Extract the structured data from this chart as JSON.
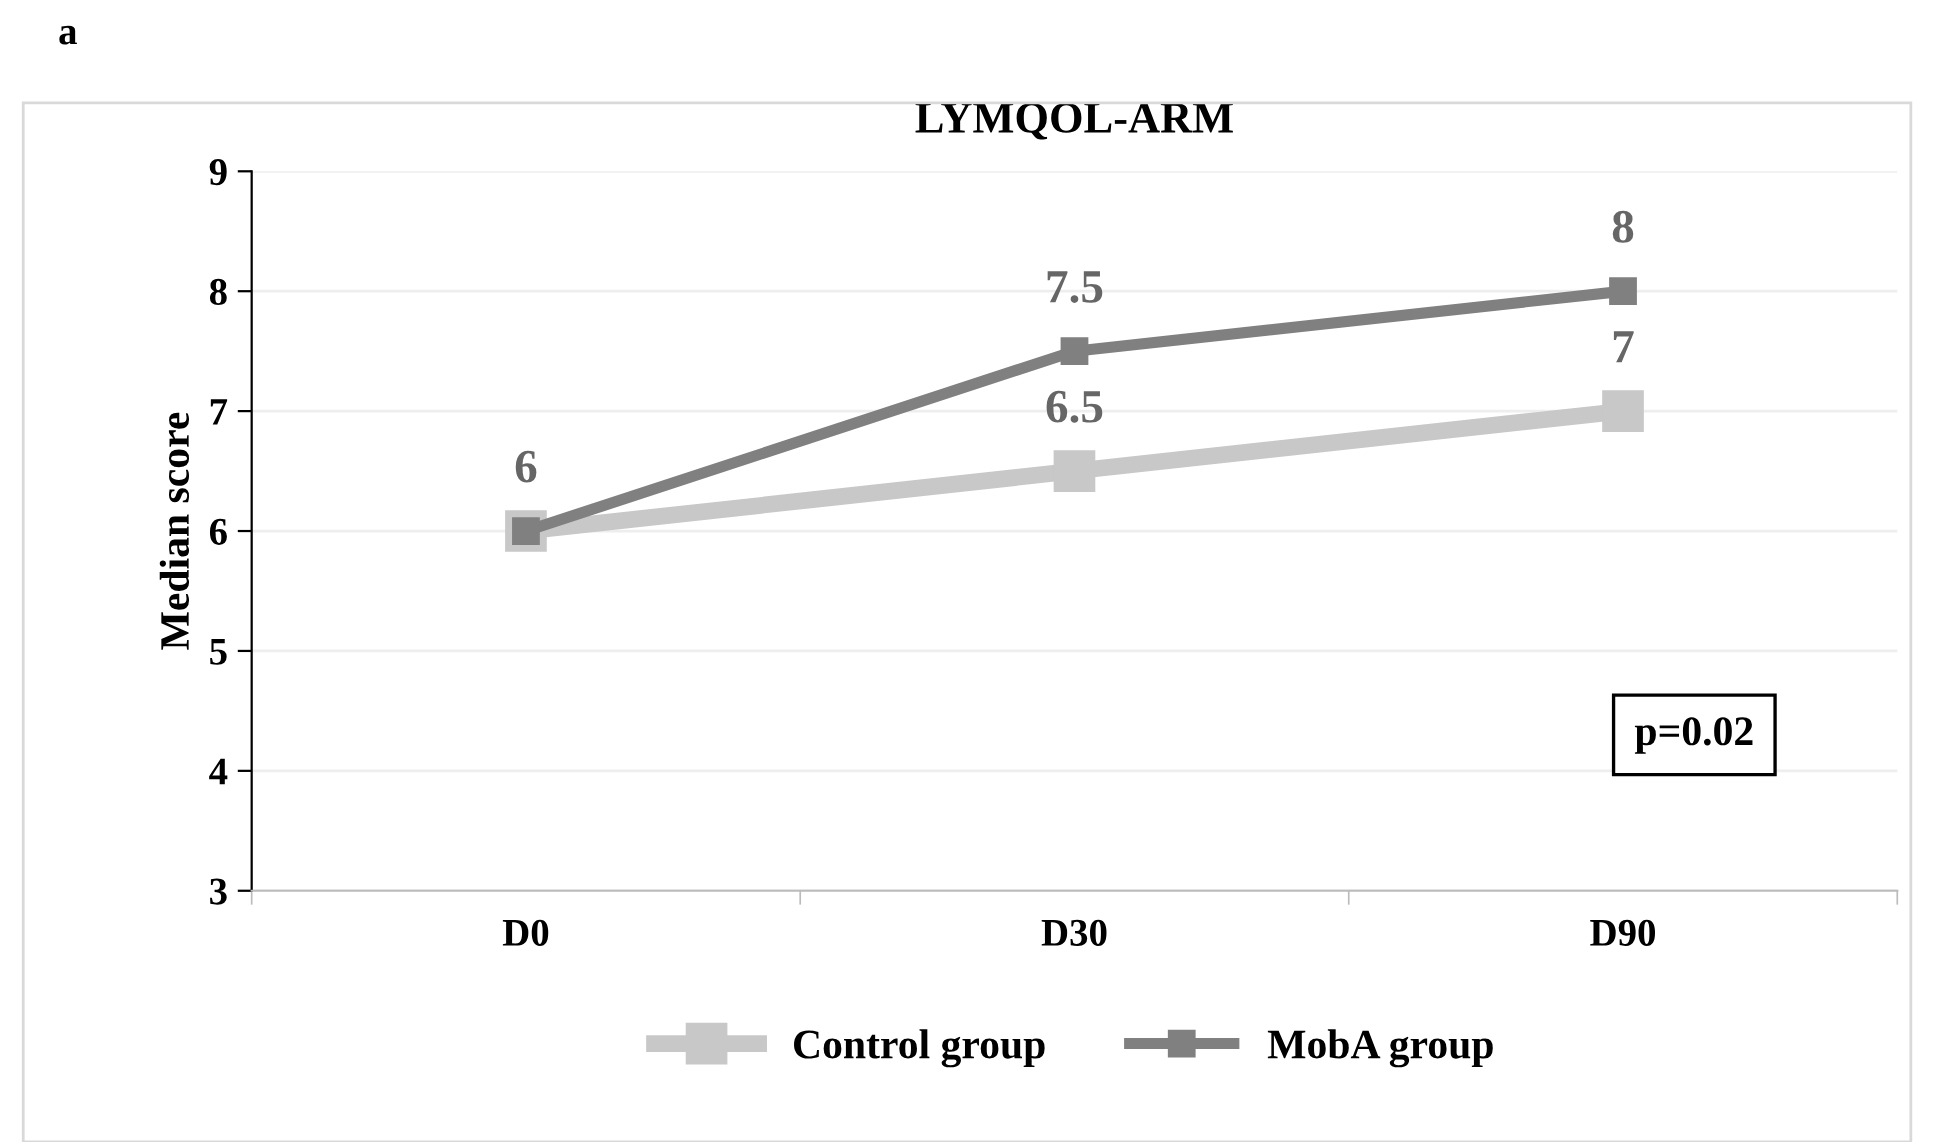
{
  "chart_data": {
    "type": "line",
    "title": "LYMQOL-ARM",
    "ylabel": "Median score",
    "categories": [
      "D0",
      "D30",
      "D90"
    ],
    "series": [
      {
        "name": "Control group",
        "color": "#c8c8c8",
        "values": [
          6,
          6.5,
          7
        ],
        "value_labels": [
          null,
          "6.5",
          "7"
        ]
      },
      {
        "name": "MobA group",
        "color": "#808080",
        "values": [
          6,
          7.5,
          8
        ],
        "value_labels": [
          "6",
          "7.5",
          "8"
        ]
      }
    ],
    "ylim": [
      3,
      9
    ],
    "yticks": [
      3,
      4,
      5,
      6,
      7,
      8,
      9
    ],
    "grid": "y",
    "legend": "bottom",
    "marker": "square",
    "line_style": "solid",
    "annotations": [
      "a",
      "p=0.02"
    ]
  }
}
